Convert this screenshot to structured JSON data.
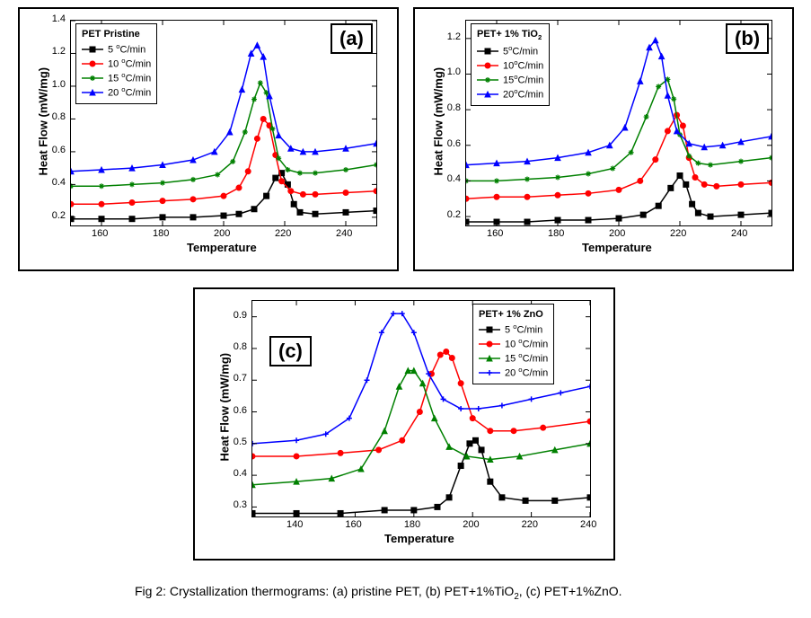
{
  "caption": "Fig 2: Crystallization thermograms: (a) pristine PET, (b) PET+1%TiO₂, (c) PET+1%ZnO.",
  "panels": {
    "a": {
      "letter": "(a)",
      "legend_title": "PET Pristine",
      "xlabel": "Temperature",
      "ylabel": "Heat Flow (mW/mg)",
      "xlim": [
        150,
        250
      ],
      "ylim": [
        0.15,
        1.4
      ],
      "xticks": [
        160,
        180,
        200,
        220,
        240
      ],
      "yticks": [
        0.2,
        0.4,
        0.6,
        0.8,
        1.0,
        1.2,
        1.4
      ],
      "background": "#ffffff",
      "axis_color": "#000000",
      "tick_fontsize": 11,
      "label_fontsize": 13,
      "series": [
        {
          "label": "5 °C/min",
          "color": "#000000",
          "marker": "square",
          "line_width": 1.5,
          "x": [
            150,
            160,
            170,
            180,
            190,
            200,
            205,
            210,
            214,
            217,
            219,
            221,
            223,
            225,
            230,
            240,
            250
          ],
          "y": [
            0.19,
            0.19,
            0.19,
            0.2,
            0.2,
            0.21,
            0.22,
            0.25,
            0.33,
            0.44,
            0.47,
            0.4,
            0.28,
            0.23,
            0.22,
            0.23,
            0.24
          ]
        },
        {
          "label": "10 °C/min",
          "color": "#ff0000",
          "marker": "circle",
          "line_width": 1.5,
          "x": [
            150,
            160,
            170,
            180,
            190,
            200,
            205,
            208,
            211,
            213,
            215,
            217,
            219,
            222,
            226,
            230,
            240,
            250
          ],
          "y": [
            0.28,
            0.28,
            0.29,
            0.3,
            0.31,
            0.33,
            0.38,
            0.48,
            0.68,
            0.8,
            0.76,
            0.58,
            0.42,
            0.36,
            0.34,
            0.34,
            0.35,
            0.36
          ]
        },
        {
          "label": "15 °C/min",
          "color": "#008000",
          "marker": "star",
          "line_width": 1.5,
          "x": [
            150,
            160,
            170,
            180,
            190,
            198,
            203,
            207,
            210,
            212,
            214,
            216,
            218,
            221,
            225,
            230,
            240,
            250
          ],
          "y": [
            0.39,
            0.39,
            0.4,
            0.41,
            0.43,
            0.46,
            0.54,
            0.72,
            0.92,
            1.02,
            0.96,
            0.74,
            0.56,
            0.49,
            0.47,
            0.47,
            0.49,
            0.52
          ]
        },
        {
          "label": "20 °C/min",
          "color": "#0000ff",
          "marker": "triangle",
          "line_width": 1.5,
          "x": [
            150,
            160,
            170,
            180,
            190,
            197,
            202,
            206,
            209,
            211,
            213,
            215,
            218,
            222,
            226,
            230,
            240,
            250
          ],
          "y": [
            0.48,
            0.49,
            0.5,
            0.52,
            0.55,
            0.6,
            0.72,
            0.98,
            1.2,
            1.25,
            1.18,
            0.94,
            0.7,
            0.62,
            0.6,
            0.6,
            0.62,
            0.65
          ]
        }
      ]
    },
    "b": {
      "letter": "(b)",
      "legend_title": "PET+ 1% TiO₂",
      "xlabel": "Temperature",
      "ylabel": "Heat Flow (mW/mg)",
      "xlim": [
        150,
        250
      ],
      "ylim": [
        0.15,
        1.3
      ],
      "xticks": [
        160,
        180,
        200,
        220,
        240
      ],
      "yticks": [
        0.2,
        0.4,
        0.6,
        0.8,
        1.0,
        1.2
      ],
      "background": "#ffffff",
      "axis_color": "#000000",
      "tick_fontsize": 11,
      "label_fontsize": 13,
      "series": [
        {
          "label": "5°C/min",
          "color": "#000000",
          "marker": "square",
          "line_width": 1.5,
          "x": [
            150,
            160,
            170,
            180,
            190,
            200,
            208,
            213,
            217,
            220,
            222,
            224,
            226,
            230,
            240,
            250
          ],
          "y": [
            0.17,
            0.17,
            0.17,
            0.18,
            0.18,
            0.19,
            0.21,
            0.26,
            0.36,
            0.43,
            0.38,
            0.27,
            0.22,
            0.2,
            0.21,
            0.22
          ]
        },
        {
          "label": "10°C/min",
          "color": "#ff0000",
          "marker": "circle",
          "line_width": 1.5,
          "x": [
            150,
            160,
            170,
            180,
            190,
            200,
            207,
            212,
            216,
            219,
            221,
            223,
            225,
            228,
            232,
            240,
            250
          ],
          "y": [
            0.3,
            0.31,
            0.31,
            0.32,
            0.33,
            0.35,
            0.4,
            0.52,
            0.68,
            0.77,
            0.71,
            0.53,
            0.42,
            0.38,
            0.37,
            0.38,
            0.39
          ]
        },
        {
          "label": "15°C/min",
          "color": "#008000",
          "marker": "star",
          "line_width": 1.5,
          "x": [
            150,
            160,
            170,
            180,
            190,
            198,
            204,
            209,
            213,
            216,
            218,
            220,
            223,
            226,
            230,
            240,
            250
          ],
          "y": [
            0.4,
            0.4,
            0.41,
            0.42,
            0.44,
            0.47,
            0.56,
            0.76,
            0.93,
            0.97,
            0.86,
            0.66,
            0.54,
            0.5,
            0.49,
            0.51,
            0.53
          ]
        },
        {
          "label": "20°C/min",
          "color": "#0000ff",
          "marker": "triangle",
          "line_width": 1.5,
          "x": [
            150,
            160,
            170,
            180,
            190,
            197,
            202,
            207,
            210,
            212,
            214,
            216,
            219,
            223,
            228,
            234,
            240,
            250
          ],
          "y": [
            0.49,
            0.5,
            0.51,
            0.53,
            0.56,
            0.6,
            0.7,
            0.96,
            1.15,
            1.19,
            1.1,
            0.88,
            0.68,
            0.61,
            0.59,
            0.6,
            0.62,
            0.65
          ]
        }
      ]
    },
    "c": {
      "letter": "(c)",
      "legend_title": "PET+ 1% ZnO",
      "xlabel": "Temperature",
      "ylabel": "Heat Flow (mW/mg)",
      "xlim": [
        125,
        240
      ],
      "ylim": [
        0.27,
        0.95
      ],
      "xticks": [
        140,
        160,
        180,
        200,
        220,
        240
      ],
      "yticks": [
        0.3,
        0.4,
        0.5,
        0.6,
        0.7,
        0.8,
        0.9
      ],
      "background": "#ffffff",
      "axis_color": "#000000",
      "tick_fontsize": 11,
      "label_fontsize": 13,
      "series": [
        {
          "label": "5 °C/min",
          "color": "#000000",
          "marker": "square",
          "line_width": 1.5,
          "x": [
            125,
            140,
            155,
            170,
            180,
            188,
            192,
            196,
            199,
            201,
            203,
            206,
            210,
            218,
            228,
            240
          ],
          "y": [
            0.28,
            0.28,
            0.28,
            0.29,
            0.29,
            0.3,
            0.33,
            0.43,
            0.5,
            0.51,
            0.48,
            0.38,
            0.33,
            0.32,
            0.32,
            0.33
          ]
        },
        {
          "label": "10 °C/min",
          "color": "#ff0000",
          "marker": "circle",
          "line_width": 1.5,
          "x": [
            125,
            140,
            155,
            168,
            176,
            182,
            186,
            189,
            191,
            193,
            196,
            200,
            206,
            214,
            224,
            240
          ],
          "y": [
            0.46,
            0.46,
            0.47,
            0.48,
            0.51,
            0.6,
            0.72,
            0.78,
            0.79,
            0.77,
            0.69,
            0.58,
            0.54,
            0.54,
            0.55,
            0.57
          ]
        },
        {
          "label": "15 °C/min",
          "color": "#008000",
          "marker": "triangle",
          "line_width": 1.5,
          "x": [
            125,
            140,
            152,
            162,
            170,
            175,
            178,
            180,
            183,
            187,
            192,
            198,
            206,
            216,
            228,
            240
          ],
          "y": [
            0.37,
            0.38,
            0.39,
            0.42,
            0.54,
            0.68,
            0.73,
            0.73,
            0.69,
            0.58,
            0.49,
            0.46,
            0.45,
            0.46,
            0.48,
            0.5
          ]
        },
        {
          "label": "20 °C/min",
          "color": "#0000ff",
          "marker": "plus",
          "line_width": 1.5,
          "x": [
            125,
            140,
            150,
            158,
            164,
            169,
            173,
            176,
            180,
            185,
            190,
            196,
            202,
            210,
            220,
            230,
            240
          ],
          "y": [
            0.5,
            0.51,
            0.53,
            0.58,
            0.7,
            0.85,
            0.91,
            0.91,
            0.85,
            0.72,
            0.64,
            0.61,
            0.61,
            0.62,
            0.64,
            0.66,
            0.68
          ]
        }
      ]
    }
  },
  "layout": {
    "panel_a": {
      "outer": [
        20,
        8,
        420,
        290
      ],
      "plot": [
        78,
        22,
        340,
        228
      ]
    },
    "panel_b": {
      "outer": [
        460,
        8,
        420,
        290
      ],
      "plot": [
        518,
        22,
        340,
        228
      ]
    },
    "panel_c": {
      "outer": [
        215,
        320,
        466,
        300
      ],
      "plot": [
        280,
        334,
        376,
        240
      ]
    }
  }
}
